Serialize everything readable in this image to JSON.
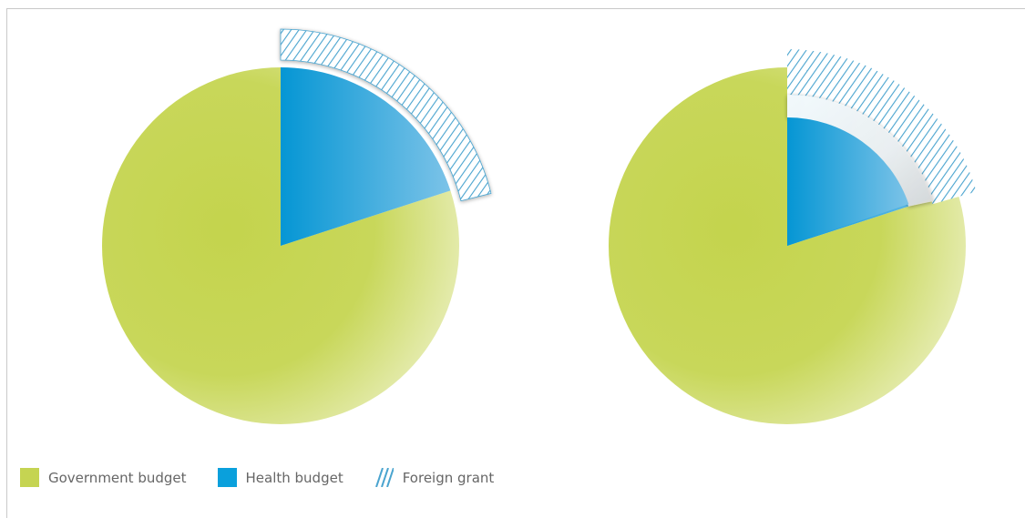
{
  "chart_data": {
    "type": "pie",
    "charts": [
      {
        "slices": [
          {
            "name": "Government budget",
            "value": 80
          },
          {
            "name": "Health budget",
            "value": 20
          }
        ],
        "foreign_grant": {
          "share_of_total": 20,
          "style": "detached band"
        }
      },
      {
        "slices": [
          {
            "name": "Government budget",
            "value": 80
          },
          {
            "name": "Health budget",
            "value": 20
          }
        ],
        "foreign_grant": {
          "share_of_total": 20,
          "style": "overlapping curled band"
        }
      }
    ],
    "legend": [
      {
        "key": "government",
        "label": "Government budget",
        "color": "#c5d452"
      },
      {
        "key": "health",
        "label": "Health budget",
        "color": "#0aa0dc"
      },
      {
        "key": "grant",
        "label": "Foreign grant",
        "color": "#4aa4cf",
        "pattern": "diagonal-hatch"
      }
    ]
  }
}
